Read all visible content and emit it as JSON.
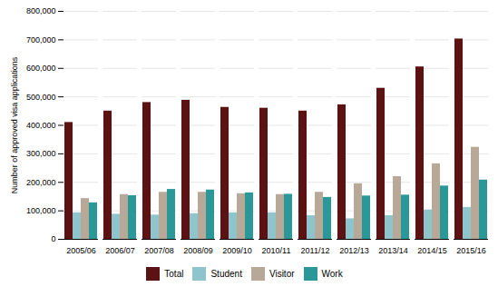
{
  "chart_data": {
    "type": "bar",
    "categories": [
      "2005/06",
      "2006/07",
      "2007/08",
      "2008/09",
      "2009/10",
      "2010/11",
      "2011/12",
      "2012/13",
      "2013/14",
      "2014/15",
      "2015/16"
    ],
    "series": [
      {
        "name": "Total",
        "color": "#5c1212",
        "values": [
          410000,
          450000,
          480000,
          488000,
          463000,
          460000,
          450000,
          472000,
          530000,
          605000,
          703000
        ]
      },
      {
        "name": "Student",
        "color": "#8ec4cc",
        "values": [
          93000,
          88000,
          85000,
          90000,
          93000,
          93000,
          83000,
          72000,
          83000,
          103000,
          112000
        ]
      },
      {
        "name": "Visitor",
        "color": "#b8a898",
        "values": [
          143000,
          157000,
          165000,
          165000,
          160000,
          157000,
          165000,
          195000,
          220000,
          265000,
          323000
        ]
      },
      {
        "name": "Work",
        "color": "#2a9898",
        "values": [
          128000,
          153000,
          175000,
          173000,
          163000,
          158000,
          147000,
          152000,
          155000,
          187000,
          208000
        ]
      }
    ],
    "ylabel": "Number of approved visa applications",
    "ylim": [
      0,
      800000
    ],
    "yticks": [
      0,
      {
        "value": 100000,
        "label": "100,000"
      },
      {
        "value": 200000,
        "label": "200,000"
      },
      {
        "value": 300000,
        "label": "300,000"
      },
      {
        "value": 400000,
        "label": "400,000"
      },
      {
        "value": 500000,
        "label": "500,000"
      },
      {
        "value": 600000,
        "label": "600,000"
      },
      {
        "value": 700000,
        "label": "700,000"
      },
      {
        "value": 800000,
        "label": "800,000"
      }
    ],
    "grid": true,
    "legend": "bottom"
  }
}
